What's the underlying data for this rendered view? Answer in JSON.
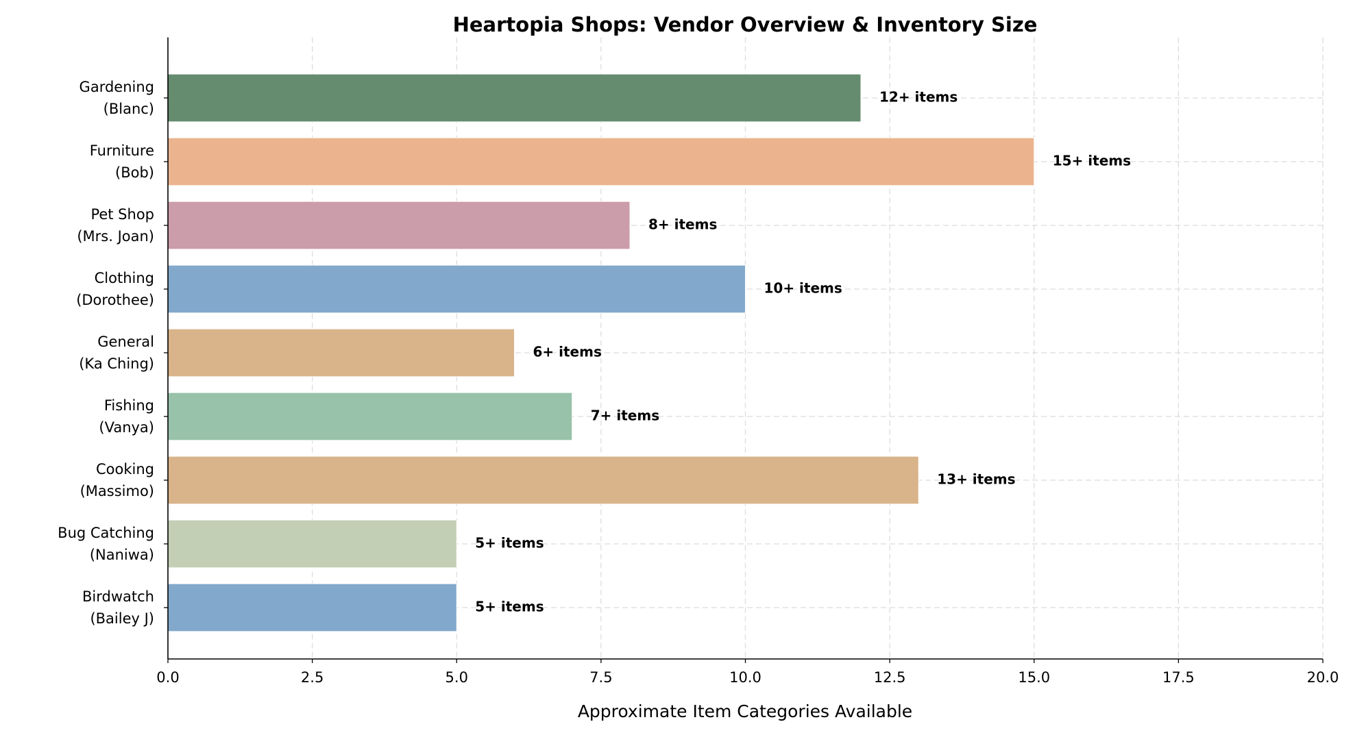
{
  "chart_data": {
    "type": "barh",
    "title": "Heartopia Shops: Vendor Overview & Inventory Size",
    "x_label": "Approximate Item Categories Available",
    "categories": [
      "Gardening\n(Blanc)",
      "Furniture\n(Bob)",
      "Pet Shop\n(Mrs. Joan)",
      "Clothing\n(Dorothee)",
      "General\n(Ka Ching)",
      "Fishing\n(Vanya)",
      "Cooking\n(Massimo)",
      "Bug Catching\n(Naniwa)",
      "Birdwatch\n(Bailey J)"
    ],
    "values": [
      12,
      15,
      8,
      10,
      6,
      7,
      13,
      5,
      5
    ],
    "value_labels": [
      "12+ items",
      "15+ items",
      "8+ items",
      "10+ items",
      "6+ items",
      "7+ items",
      "13+ items",
      "5+ items",
      "5+ items"
    ],
    "colors": [
      "#668c6f",
      "#ebb48f",
      "#cb9caa",
      "#82a9cc",
      "#d9b38a",
      "#98c2aa",
      "#d9b38a",
      "#c3cfb4",
      "#82a9cc"
    ],
    "xlim": [
      0,
      20
    ],
    "xticks": [
      {
        "value": 0,
        "label": "0.0"
      },
      2.5,
      {
        "value": 5,
        "label": "5.0"
      },
      7.5,
      {
        "value": 10,
        "label": "10.0"
      },
      12.5,
      {
        "value": 15,
        "label": "15.0"
      },
      17.5,
      {
        "value": 20,
        "label": "20.0"
      }
    ],
    "grid": true
  }
}
